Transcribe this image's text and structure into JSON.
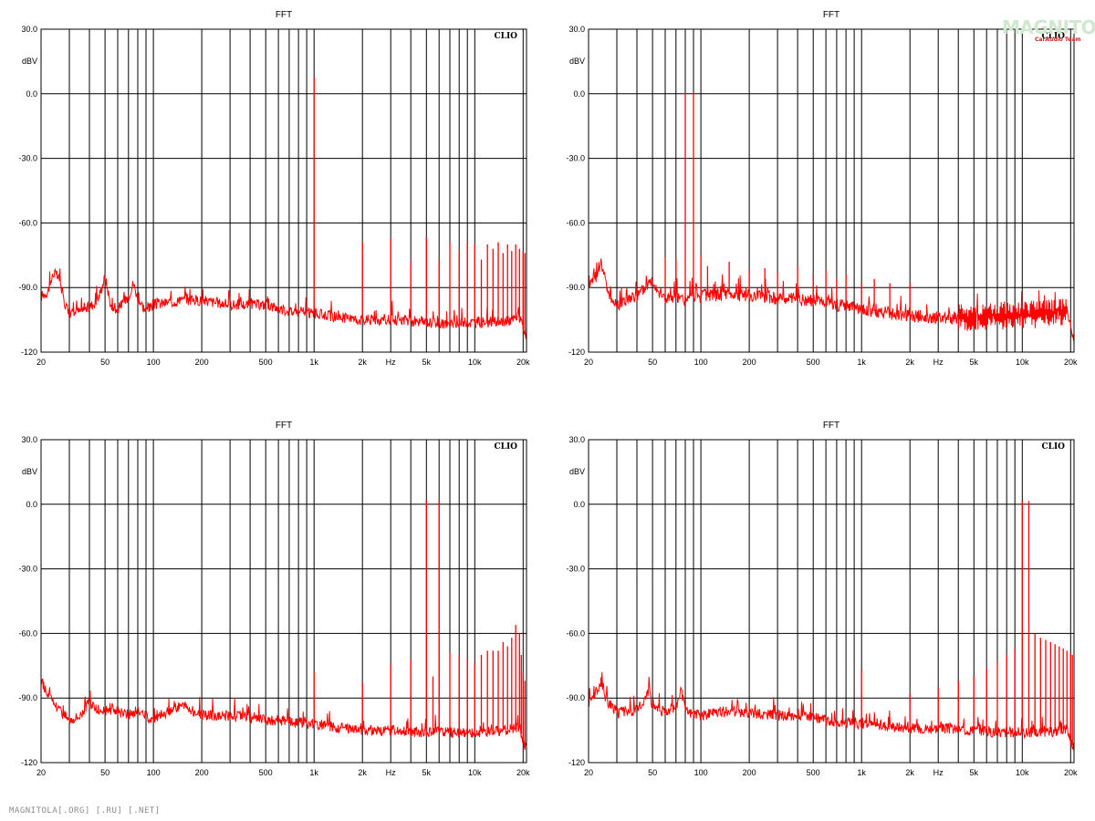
{
  "watermark": {
    "text": "MAGNITOLA",
    "sub": "CarAudio Team"
  },
  "footer": {
    "text": "MAGNITOLA[.ORG] [.RU] [.NET]"
  },
  "colors": {
    "trace": "#ff0000",
    "grid": "#000000",
    "frame": "#000000",
    "text": "#000000"
  },
  "chart_data": [
    {
      "type": "line",
      "title": "FFT",
      "badge": "CLIO",
      "ylabel": "dBV",
      "xlabel": "Hz",
      "xscale": "log",
      "xlim": [
        20,
        21000
      ],
      "ylim": [
        -120,
        30
      ],
      "yticks": [
        30.0,
        0.0,
        -30.0,
        -60.0,
        -90.0,
        -120
      ],
      "ytick_labels": [
        "30.0",
        "0.0",
        "-30.0",
        "-60.0",
        "-90.0",
        "-120"
      ],
      "xtick_labels": [
        {
          "x": 20,
          "label": "20"
        },
        {
          "x": 50,
          "label": "50"
        },
        {
          "x": 100,
          "label": "100"
        },
        {
          "x": 200,
          "label": "200"
        },
        {
          "x": 500,
          "label": "500"
        },
        {
          "x": 1000,
          "label": "1k"
        },
        {
          "x": 2000,
          "label": "2k"
        },
        {
          "x": 3000,
          "label": "Hz"
        },
        {
          "x": 5000,
          "label": "5k"
        },
        {
          "x": 10000,
          "label": "10k"
        },
        {
          "x": 20000,
          "label": "20k"
        }
      ],
      "grid": true,
      "series": [
        {
          "color": "#ff0000",
          "floor": [
            [
              20,
              -94
            ],
            [
              22,
              -92
            ],
            [
              24,
              -83
            ],
            [
              26,
              -86
            ],
            [
              28,
              -97
            ],
            [
              30,
              -102
            ],
            [
              35,
              -101
            ],
            [
              40,
              -99
            ],
            [
              45,
              -96
            ],
            [
              50,
              -85
            ],
            [
              55,
              -100
            ],
            [
              60,
              -100
            ],
            [
              70,
              -94
            ],
            [
              75,
              -88
            ],
            [
              80,
              -95
            ],
            [
              90,
              -101
            ],
            [
              100,
              -98
            ],
            [
              150,
              -96
            ],
            [
              200,
              -96
            ],
            [
              300,
              -98
            ],
            [
              400,
              -98
            ],
            [
              500,
              -98
            ],
            [
              700,
              -101
            ],
            [
              1000,
              -102
            ],
            [
              1500,
              -104
            ],
            [
              2000,
              -105
            ],
            [
              3000,
              -105
            ],
            [
              5000,
              -106
            ],
            [
              7000,
              -107
            ],
            [
              10000,
              -106
            ],
            [
              15000,
              -106
            ],
            [
              19000,
              -104
            ],
            [
              20500,
              -112
            ]
          ],
          "peaks": [
            [
              1000,
              7.5
            ],
            [
              2000,
              -69
            ],
            [
              3000,
              -67
            ],
            [
              4000,
              -78
            ],
            [
              5000,
              -67
            ],
            [
              6000,
              -77
            ],
            [
              7000,
              -69
            ],
            [
              8000,
              -73
            ],
            [
              9000,
              -69
            ],
            [
              10000,
              -70
            ],
            [
              11000,
              -77
            ],
            [
              12000,
              -70
            ],
            [
              13000,
              -72
            ],
            [
              14000,
              -69
            ],
            [
              15000,
              -74
            ],
            [
              16000,
              -70
            ],
            [
              17000,
              -73
            ],
            [
              18000,
              -70
            ],
            [
              19000,
              -72
            ],
            [
              20000,
              -73
            ],
            [
              20500,
              -74
            ]
          ],
          "noise": 5
        }
      ]
    },
    {
      "type": "line",
      "title": "FFT",
      "badge": "CLIO",
      "ylabel": "dBV",
      "xlabel": "Hz",
      "xscale": "log",
      "xlim": [
        20,
        21000
      ],
      "ylim": [
        -120,
        30
      ],
      "yticks": [
        30.0,
        0.0,
        -30.0,
        -60.0,
        -90.0,
        -120
      ],
      "ytick_labels": [
        "30.0",
        "0.0",
        "-30.0",
        "-60.0",
        "-90.0",
        "-120"
      ],
      "xtick_labels": [
        {
          "x": 20,
          "label": "20"
        },
        {
          "x": 50,
          "label": "50"
        },
        {
          "x": 100,
          "label": "100"
        },
        {
          "x": 200,
          "label": "200"
        },
        {
          "x": 500,
          "label": "500"
        },
        {
          "x": 1000,
          "label": "1k"
        },
        {
          "x": 2000,
          "label": "2k"
        },
        {
          "x": 3000,
          "label": "Hz"
        },
        {
          "x": 5000,
          "label": "5k"
        },
        {
          "x": 10000,
          "label": "10k"
        },
        {
          "x": 20000,
          "label": "20k"
        }
      ],
      "grid": true,
      "series": [
        {
          "color": "#ff0000",
          "floor": [
            [
              20,
              -88
            ],
            [
              22,
              -86
            ],
            [
              24,
              -78
            ],
            [
              26,
              -90
            ],
            [
              28,
              -96
            ],
            [
              30,
              -98
            ],
            [
              35,
              -96
            ],
            [
              40,
              -94
            ],
            [
              45,
              -90
            ],
            [
              50,
              -86
            ],
            [
              55,
              -92
            ],
            [
              60,
              -95
            ],
            [
              70,
              -95
            ],
            [
              80,
              -96
            ],
            [
              100,
              -94
            ],
            [
              150,
              -93
            ],
            [
              200,
              -94
            ],
            [
              300,
              -95
            ],
            [
              500,
              -96
            ],
            [
              700,
              -98
            ],
            [
              1000,
              -100
            ],
            [
              1500,
              -102
            ],
            [
              2000,
              -103
            ],
            [
              3000,
              -104
            ],
            [
              5000,
              -104
            ],
            [
              7000,
              -103
            ],
            [
              10000,
              -103
            ],
            [
              15000,
              -102
            ],
            [
              19000,
              -101
            ],
            [
              20500,
              -112
            ]
          ],
          "peaks": [
            [
              60,
              -76
            ],
            [
              70,
              -77
            ],
            [
              80,
              0.5
            ],
            [
              90,
              0.5
            ],
            [
              100,
              -75
            ],
            [
              110,
              -80
            ],
            [
              150,
              -78
            ],
            [
              200,
              -82
            ],
            [
              250,
              -81
            ],
            [
              300,
              -83
            ],
            [
              400,
              -80
            ],
            [
              500,
              -84
            ],
            [
              600,
              -82
            ],
            [
              700,
              -86
            ],
            [
              800,
              -84
            ],
            [
              1000,
              -88
            ],
            [
              1200,
              -86
            ],
            [
              1500,
              -88
            ],
            [
              2000,
              -88
            ]
          ],
          "noise": 6,
          "dense_from": 4000,
          "dense_band": 6
        }
      ]
    },
    {
      "type": "line",
      "title": "FFT",
      "badge": "CLIO",
      "ylabel": "dBV",
      "xlabel": "Hz",
      "xscale": "log",
      "xlim": [
        20,
        21000
      ],
      "ylim": [
        -120,
        30
      ],
      "yticks": [
        30.0,
        0.0,
        -30.0,
        -60.0,
        -90.0,
        -120
      ],
      "ytick_labels": [
        "30.0",
        "0.0",
        "-30.0",
        "-60.0",
        "-90.0",
        "-120"
      ],
      "xtick_labels": [
        {
          "x": 20,
          "label": "20"
        },
        {
          "x": 50,
          "label": "50"
        },
        {
          "x": 100,
          "label": "100"
        },
        {
          "x": 200,
          "label": "200"
        },
        {
          "x": 500,
          "label": "500"
        },
        {
          "x": 1000,
          "label": "1k"
        },
        {
          "x": 2000,
          "label": "2k"
        },
        {
          "x": 3000,
          "label": "Hz"
        },
        {
          "x": 5000,
          "label": "5k"
        },
        {
          "x": 10000,
          "label": "10k"
        },
        {
          "x": 20000,
          "label": "20k"
        }
      ],
      "grid": true,
      "series": [
        {
          "color": "#ff0000",
          "floor": [
            [
              20,
              -82
            ],
            [
              22,
              -88
            ],
            [
              25,
              -94
            ],
            [
              30,
              -100
            ],
            [
              35,
              -98
            ],
            [
              40,
              -92
            ],
            [
              45,
              -96
            ],
            [
              50,
              -96
            ],
            [
              60,
              -96
            ],
            [
              70,
              -98
            ],
            [
              80,
              -96
            ],
            [
              100,
              -100
            ],
            [
              150,
              -93
            ],
            [
              200,
              -98
            ],
            [
              300,
              -98
            ],
            [
              500,
              -100
            ],
            [
              700,
              -101
            ],
            [
              1000,
              -102
            ],
            [
              1500,
              -104
            ],
            [
              2000,
              -105
            ],
            [
              3000,
              -105
            ],
            [
              5000,
              -106
            ],
            [
              7000,
              -106
            ],
            [
              10000,
              -106
            ],
            [
              15000,
              -105
            ],
            [
              19000,
              -104
            ],
            [
              20500,
              -112
            ]
          ],
          "peaks": [
            [
              1000,
              -78
            ],
            [
              2000,
              -83
            ],
            [
              3000,
              -74
            ],
            [
              4000,
              -72
            ],
            [
              5000,
              2
            ],
            [
              5500,
              -80
            ],
            [
              6000,
              2
            ],
            [
              7000,
              -69
            ],
            [
              8000,
              -70
            ],
            [
              9000,
              -72
            ],
            [
              10000,
              -74
            ],
            [
              11000,
              -70
            ],
            [
              12000,
              -68
            ],
            [
              13000,
              -68
            ],
            [
              14000,
              -68
            ],
            [
              15000,
              -64
            ],
            [
              16000,
              -66
            ],
            [
              17000,
              -62
            ],
            [
              18000,
              -56
            ],
            [
              19000,
              -60
            ],
            [
              19500,
              -70
            ],
            [
              20000,
              -78
            ],
            [
              20500,
              -82
            ]
          ],
          "noise": 5
        }
      ]
    },
    {
      "type": "line",
      "title": "FFT",
      "badge": "CLIO",
      "ylabel": "dBV",
      "xlabel": "Hz",
      "xscale": "log",
      "xlim": [
        20,
        21000
      ],
      "ylim": [
        -120,
        30
      ],
      "yticks": [
        30.0,
        0.0,
        -30.0,
        -60.0,
        -90.0,
        -120
      ],
      "ytick_labels": [
        "30.0",
        "0.0",
        "-30.0",
        "-60.0",
        "-90.0",
        "-120"
      ],
      "xtick_labels": [
        {
          "x": 20,
          "label": "20"
        },
        {
          "x": 50,
          "label": "50"
        },
        {
          "x": 100,
          "label": "100"
        },
        {
          "x": 200,
          "label": "200"
        },
        {
          "x": 500,
          "label": "500"
        },
        {
          "x": 1000,
          "label": "1k"
        },
        {
          "x": 2000,
          "label": "2k"
        },
        {
          "x": 3000,
          "label": "Hz"
        },
        {
          "x": 5000,
          "label": "5k"
        },
        {
          "x": 10000,
          "label": "10k"
        },
        {
          "x": 20000,
          "label": "20k"
        }
      ],
      "grid": true,
      "series": [
        {
          "color": "#ff0000",
          "floor": [
            [
              20,
              -92
            ],
            [
              22,
              -88
            ],
            [
              24,
              -82
            ],
            [
              26,
              -92
            ],
            [
              30,
              -97
            ],
            [
              35,
              -96
            ],
            [
              40,
              -96
            ],
            [
              45,
              -90
            ],
            [
              48,
              -85
            ],
            [
              50,
              -95
            ],
            [
              60,
              -96
            ],
            [
              70,
              -94
            ],
            [
              75,
              -86
            ],
            [
              80,
              -96
            ],
            [
              100,
              -98
            ],
            [
              150,
              -96
            ],
            [
              200,
              -97
            ],
            [
              300,
              -98
            ],
            [
              500,
              -99
            ],
            [
              700,
              -101
            ],
            [
              1000,
              -102
            ],
            [
              1500,
              -103
            ],
            [
              2000,
              -104
            ],
            [
              3000,
              -104
            ],
            [
              5000,
              -105
            ],
            [
              7000,
              -106
            ],
            [
              10000,
              -106
            ],
            [
              15000,
              -106
            ],
            [
              19000,
              -104
            ],
            [
              20500,
              -112
            ]
          ],
          "peaks": [
            [
              1000,
              -77
            ],
            [
              2000,
              -88
            ],
            [
              3000,
              -85
            ],
            [
              4000,
              -82
            ],
            [
              5000,
              -80
            ],
            [
              6000,
              -76
            ],
            [
              7000,
              -73
            ],
            [
              8000,
              -70
            ],
            [
              9000,
              -67
            ],
            [
              10000,
              1.5
            ],
            [
              11000,
              1.5
            ],
            [
              12000,
              -60
            ],
            [
              13000,
              -62
            ],
            [
              14000,
              -63
            ],
            [
              15000,
              -64
            ],
            [
              16000,
              -65
            ],
            [
              17000,
              -66
            ],
            [
              18000,
              -67
            ],
            [
              19000,
              -68
            ],
            [
              20000,
              -69
            ],
            [
              20500,
              -70
            ]
          ],
          "noise": 5
        }
      ]
    }
  ]
}
